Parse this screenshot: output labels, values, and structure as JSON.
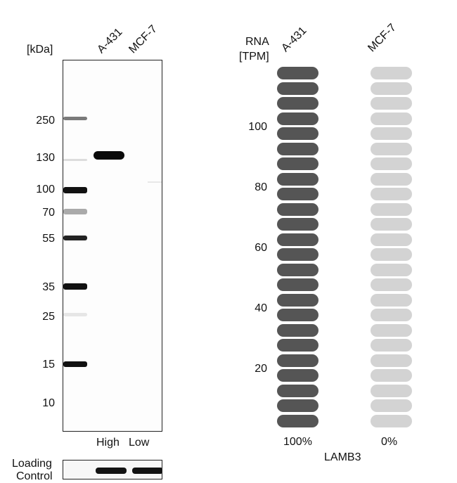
{
  "western_blot": {
    "unit_label": "[kDa]",
    "lanes": [
      "A-431",
      "MCF-7"
    ],
    "markers": [
      "250",
      "130",
      "100",
      "70",
      "55",
      "35",
      "25",
      "15",
      "10"
    ],
    "lane_levels": [
      "High",
      "Low"
    ],
    "loading_control_label_line1": "Loading",
    "loading_control_label_line2": "Control"
  },
  "rna": {
    "title_line1": "RNA",
    "title_line2": "[TPM]",
    "gene": "LAMB3",
    "colors": {
      "high": "#555555",
      "low": "#d3d3d3"
    }
  },
  "chart_data": {
    "type": "bar",
    "title": "",
    "ylabel": "RNA [TPM]",
    "xlabel": "LAMB3",
    "categories": [
      "A-431",
      "MCF-7"
    ],
    "tick_labels": [
      "20",
      "40",
      "60",
      "80",
      "100"
    ],
    "values_percent": [
      "100%",
      "0%"
    ],
    "values": [
      100,
      0
    ],
    "segments_total": 24,
    "segments_filled": [
      24,
      0
    ]
  }
}
